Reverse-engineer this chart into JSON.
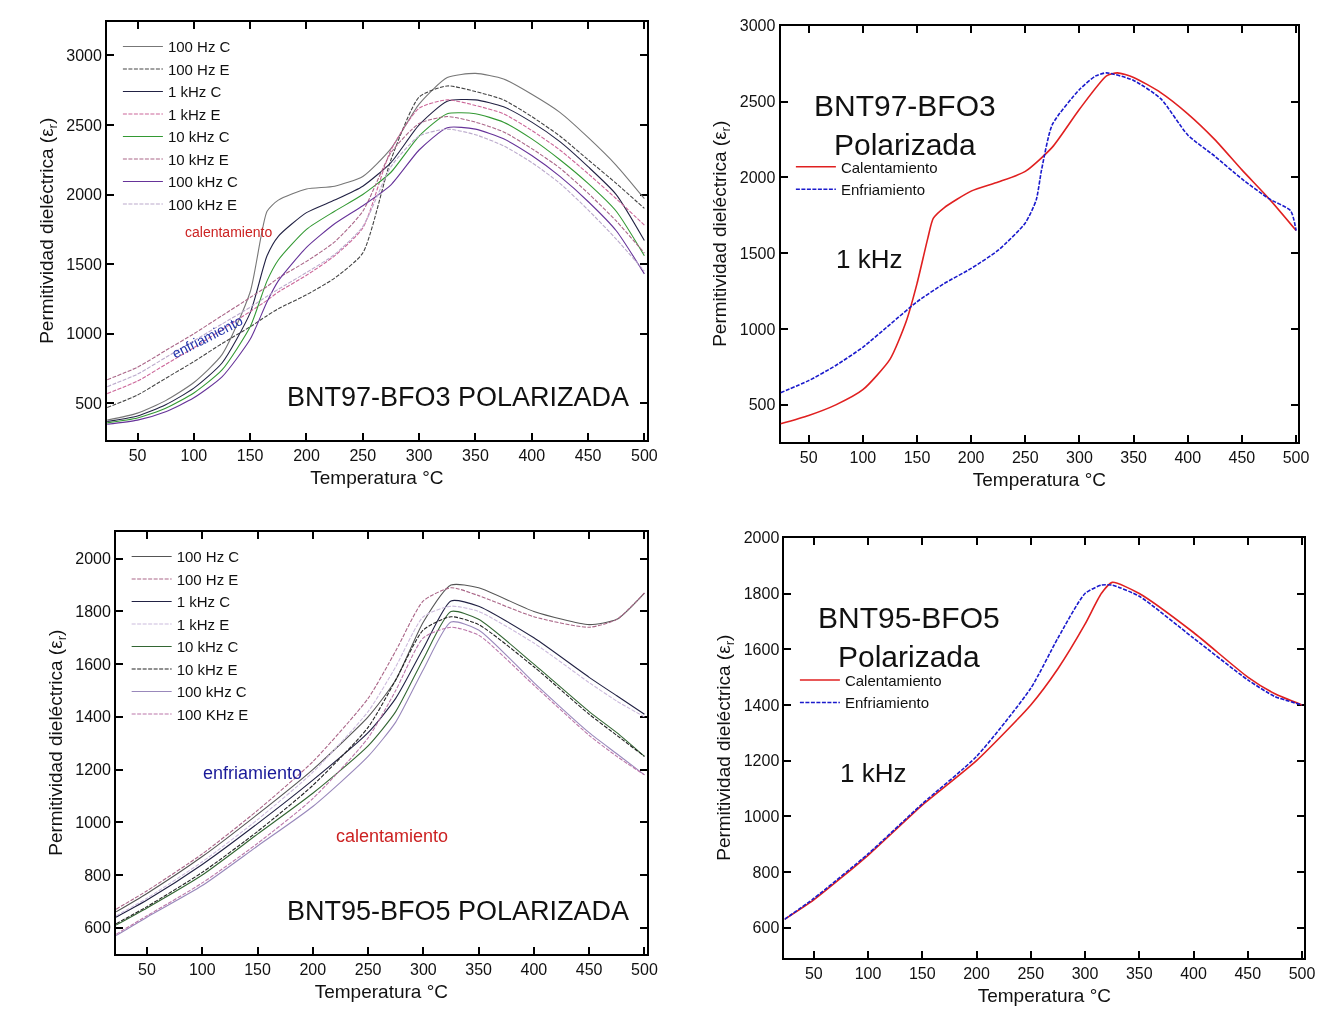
{
  "chart_data": [
    {
      "type": "line",
      "title": "BNT97-BFO3 POLARIZADA",
      "xlabel": "Temperatura °C",
      "ylabel": "Permitividad dieléctrica (ε$_{r}$)",
      "xlim": [
        23,
        502
      ],
      "ylim": [
        240,
        3240
      ],
      "xticks": [
        50,
        100,
        150,
        200,
        250,
        300,
        350,
        400,
        450,
        500
      ],
      "yticks": [
        500,
        1000,
        1500,
        2000,
        2500,
        3000
      ],
      "legend": "top left",
      "marker": "none",
      "x": [
        23,
        50,
        75,
        100,
        125,
        150,
        165,
        175,
        200,
        225,
        250,
        275,
        300,
        325,
        350,
        375,
        400,
        425,
        450,
        475,
        500
      ],
      "annotations": [
        "calentamiento",
        "enfriamiento"
      ],
      "series": [
        {
          "name": "100 Hz C",
          "color": "#777777",
          "line_style": "solid",
          "values": [
            380,
            430,
            520,
            650,
            850,
            1300,
            1880,
            1960,
            2040,
            2060,
            2130,
            2330,
            2650,
            2840,
            2870,
            2830,
            2720,
            2590,
            2410,
            2210,
            1970
          ]
        },
        {
          "name": "100 Hz E",
          "color": "#444444",
          "line_style": "dashed",
          "values": [
            470,
            560,
            680,
            800,
            930,
            1050,
            1130,
            1180,
            1280,
            1400,
            1580,
            2250,
            2700,
            2780,
            2740,
            2680,
            2560,
            2420,
            2250,
            2080,
            1900
          ]
        },
        {
          "name": "1 kHz C",
          "color": "#222244",
          "line_style": "solid",
          "values": [
            370,
            410,
            490,
            610,
            790,
            1150,
            1560,
            1700,
            1870,
            1960,
            2060,
            2230,
            2500,
            2670,
            2680,
            2630,
            2520,
            2380,
            2200,
            2000,
            1670
          ]
        },
        {
          "name": "1 kHz E",
          "color": "#cc6699",
          "line_style": "dashed",
          "values": [
            570,
            660,
            780,
            900,
            1030,
            1160,
            1240,
            1300,
            1420,
            1560,
            1760,
            2320,
            2620,
            2680,
            2640,
            2580,
            2460,
            2320,
            2150,
            1970,
            1780
          ]
        },
        {
          "name": "10 kHz C",
          "color": "#339933",
          "line_style": "solid",
          "values": [
            360,
            395,
            465,
            575,
            740,
            1050,
            1380,
            1530,
            1750,
            1880,
            2000,
            2160,
            2420,
            2580,
            2580,
            2520,
            2400,
            2250,
            2080,
            1880,
            1560
          ]
        },
        {
          "name": "10 kHz E",
          "color": "#aa6688",
          "line_style": "dashed",
          "values": [
            670,
            760,
            880,
            1000,
            1130,
            1260,
            1340,
            1400,
            1520,
            1660,
            1880,
            2300,
            2510,
            2560,
            2520,
            2450,
            2330,
            2190,
            2010,
            1810,
            1580
          ]
        },
        {
          "name": "100 kHz C",
          "color": "#663399",
          "line_style": "solid",
          "values": [
            350,
            380,
            440,
            540,
            690,
            960,
            1230,
            1380,
            1620,
            1790,
            1920,
            2070,
            2320,
            2480,
            2470,
            2400,
            2280,
            2130,
            1950,
            1740,
            1430
          ]
        },
        {
          "name": "100 kHz E",
          "color": "#bbaacc",
          "line_style": "dashed",
          "values": [
            620,
            710,
            830,
            950,
            1070,
            1190,
            1270,
            1320,
            1440,
            1570,
            1770,
            2200,
            2420,
            2470,
            2430,
            2350,
            2230,
            2080,
            1890,
            1680,
            1450
          ]
        }
      ]
    },
    {
      "type": "line",
      "title": "BNT97-BFO3\nPolarizada",
      "subtitle": "1 kHz",
      "xlabel": "Temperatura °C",
      "ylabel": "Permitividad dieléctrica (ε$_{r}$)",
      "xlim": [
        24,
        502
      ],
      "ylim": [
        258,
        3000
      ],
      "xticks": [
        50,
        100,
        150,
        200,
        250,
        300,
        350,
        400,
        450,
        500
      ],
      "yticks": [
        500,
        1000,
        1500,
        2000,
        2500,
        3000
      ],
      "legend": "top left",
      "marker": "none",
      "series": [
        {
          "name": "Calentamiento",
          "color": "#e02020",
          "line_style": "solid",
          "x": [
            24,
            50,
            75,
            100,
            125,
            140,
            150,
            160,
            165,
            175,
            200,
            225,
            250,
            275,
            300,
            325,
            335,
            350,
            375,
            400,
            425,
            450,
            475,
            500
          ],
          "values": [
            375,
            430,
            500,
            600,
            800,
            1050,
            1300,
            1600,
            1730,
            1800,
            1910,
            1970,
            2040,
            2200,
            2450,
            2670,
            2690,
            2660,
            2560,
            2420,
            2250,
            2050,
            1860,
            1650
          ]
        },
        {
          "name": "Enfriamiento",
          "color": "#1a1acc",
          "line_style": "dashed",
          "x": [
            24,
            50,
            75,
            100,
            125,
            150,
            175,
            200,
            225,
            250,
            260,
            265,
            275,
            300,
            315,
            325,
            350,
            375,
            400,
            425,
            450,
            475,
            495,
            500
          ],
          "values": [
            580,
            660,
            760,
            880,
            1030,
            1180,
            1300,
            1400,
            1520,
            1700,
            1850,
            2050,
            2350,
            2580,
            2670,
            2690,
            2640,
            2520,
            2280,
            2140,
            1990,
            1860,
            1780,
            1650
          ]
        }
      ]
    },
    {
      "type": "line",
      "title": "BNT95-BFO5 POLARIZADA",
      "xlabel": "Temperatura °C",
      "ylabel": "Permitividad dieléctrica (ε$_{r}$)",
      "xlim": [
        22,
        502
      ],
      "ylim": [
        502,
        2102
      ],
      "xticks": [
        50,
        100,
        150,
        200,
        250,
        300,
        350,
        400,
        450,
        500
      ],
      "yticks": [
        600,
        800,
        1000,
        1200,
        1400,
        1600,
        1800,
        2000
      ],
      "legend": "top left",
      "marker": "none",
      "x": [
        22,
        50,
        100,
        150,
        200,
        250,
        275,
        300,
        325,
        350,
        400,
        450,
        475,
        500
      ],
      "annotations": [
        "enfriamiento",
        "calentamiento"
      ],
      "series": [
        {
          "name": "100 Hz C",
          "color": "#555555",
          "line_style": "solid",
          "values": [
            660,
            730,
            870,
            1030,
            1200,
            1400,
            1540,
            1760,
            1900,
            1890,
            1800,
            1750,
            1770,
            1870
          ]
        },
        {
          "name": "100 Hz E",
          "color": "#aa6688",
          "line_style": "dashed",
          "values": [
            670,
            740,
            880,
            1045,
            1230,
            1470,
            1650,
            1840,
            1890,
            1860,
            1780,
            1740,
            1770,
            1870
          ]
        },
        {
          "name": "1 kHz C",
          "color": "#222244",
          "line_style": "solid",
          "values": [
            640,
            705,
            840,
            995,
            1160,
            1340,
            1470,
            1660,
            1840,
            1820,
            1700,
            1550,
            1480,
            1410
          ]
        },
        {
          "name": "1 kHz E",
          "color": "#ccbbdd",
          "line_style": "dashed",
          "values": [
            645,
            712,
            850,
            1010,
            1190,
            1420,
            1590,
            1780,
            1820,
            1800,
            1680,
            1530,
            1460,
            1400
          ]
        },
        {
          "name": "10 kHz C",
          "color": "#336633",
          "line_style": "solid",
          "values": [
            610,
            675,
            800,
            955,
            1110,
            1290,
            1420,
            1620,
            1800,
            1770,
            1600,
            1420,
            1340,
            1250
          ]
        },
        {
          "name": "10 kHz E",
          "color": "#222222",
          "line_style": "dashed",
          "values": [
            615,
            680,
            810,
            965,
            1140,
            1360,
            1540,
            1730,
            1780,
            1750,
            1590,
            1410,
            1330,
            1250
          ]
        },
        {
          "name": "100 kHz C",
          "color": "#9988bb",
          "line_style": "solid",
          "values": [
            570,
            640,
            760,
            910,
            1060,
            1250,
            1380,
            1580,
            1760,
            1730,
            1530,
            1340,
            1260,
            1180
          ]
        },
        {
          "name": "100 KHz E",
          "color": "#bb77aa",
          "line_style": "dashed",
          "values": [
            575,
            645,
            770,
            920,
            1090,
            1320,
            1500,
            1700,
            1740,
            1710,
            1520,
            1330,
            1250,
            1180
          ]
        }
      ]
    },
    {
      "type": "line",
      "title": "BNT95-BFO5\nPolarizada",
      "subtitle": "1 kHz",
      "xlabel": "Temperatura °C",
      "ylabel": "Permitividad dieléctrica (ε$_{r}$)",
      "xlim": [
        23,
        502
      ],
      "ylim": [
        493,
        2000
      ],
      "xticks": [
        50,
        100,
        150,
        200,
        250,
        300,
        350,
        400,
        450,
        500
      ],
      "yticks": [
        600,
        800,
        1000,
        1200,
        1400,
        1600,
        1800,
        2000
      ],
      "legend": "top left",
      "marker": "none",
      "x": [
        23,
        50,
        100,
        150,
        200,
        250,
        275,
        300,
        315,
        325,
        350,
        400,
        450,
        475,
        500
      ],
      "series": [
        {
          "name": "Calentamiento",
          "color": "#e02020",
          "line_style": "solid",
          "values": [
            630,
            700,
            860,
            1040,
            1200,
            1400,
            1530,
            1690,
            1800,
            1840,
            1800,
            1660,
            1500,
            1440,
            1400
          ]
        },
        {
          "name": "Enfriamiento",
          "color": "#1a1acc",
          "line_style": "dashed",
          "values": [
            630,
            705,
            865,
            1045,
            1215,
            1460,
            1640,
            1800,
            1830,
            1830,
            1790,
            1640,
            1490,
            1430,
            1400
          ]
        }
      ]
    }
  ]
}
